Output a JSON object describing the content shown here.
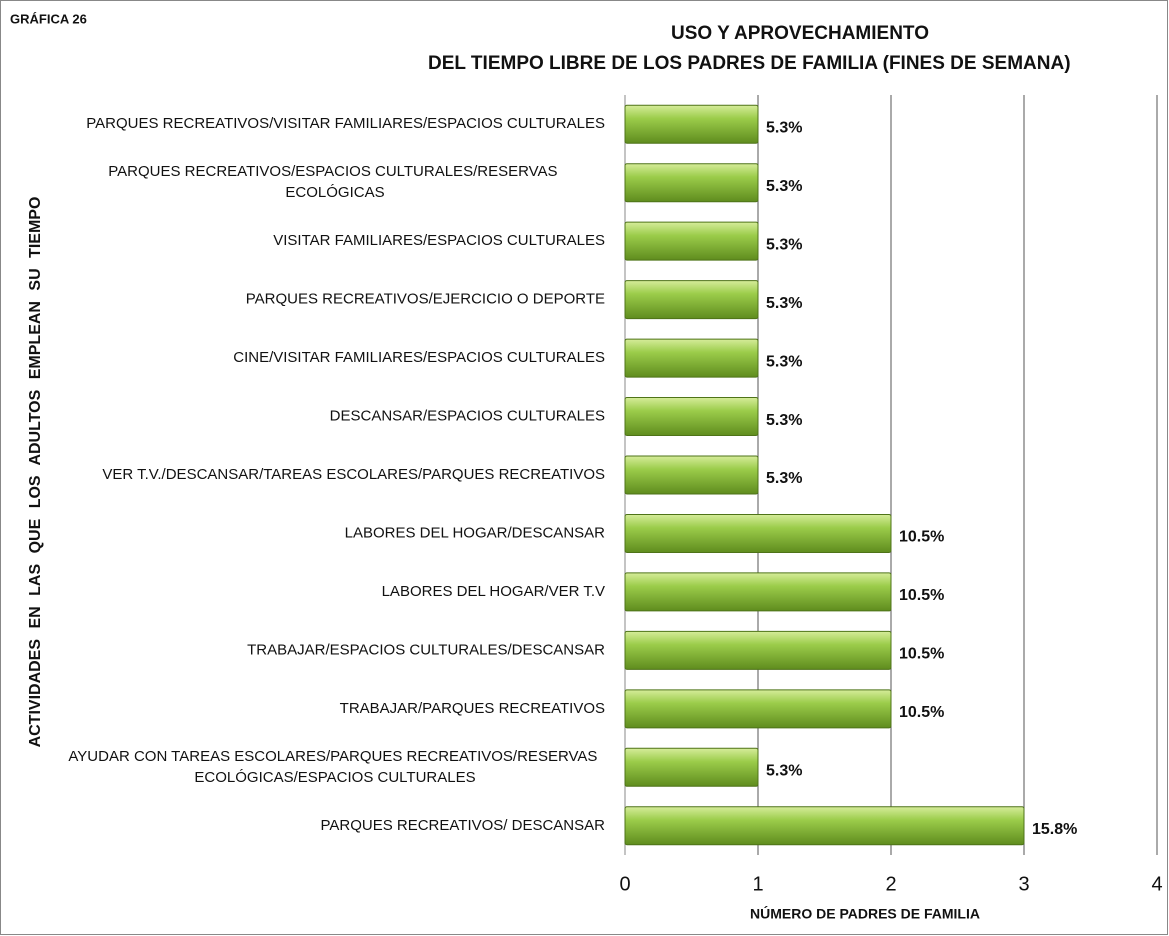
{
  "chart_data": {
    "type": "bar",
    "orientation": "horizontal",
    "figure_label": "GRÁFICA 26",
    "title": [
      "USO Y APROVECHAMIENTO",
      "DEL TIEMPO LIBRE DE LOS PADRES DE FAMILIA (FINES DE SEMANA)"
    ],
    "xlabel": "NÚMERO DE PADRES DE FAMILIA",
    "ylabel": "ACTIVIDADES EN LAS QUE LOS ADULTOS EMPLEAN SU TIEMPO",
    "categories": [
      "PARQUES RECREATIVOS/VISITAR FAMILIARES/ESPACIOS CULTURALES",
      "PARQUES RECREATIVOS/ESPACIOS CULTURALES/RESERVAS ECOLÓGICAS",
      "VISITAR FAMILIARES/ESPACIOS CULTURALES",
      "PARQUES RECREATIVOS/EJERCICIO O DEPORTE",
      "CINE/VISITAR FAMILIARES/ESPACIOS CULTURALES",
      "DESCANSAR/ESPACIOS CULTURALES",
      "VER T.V./DESCANSAR/TAREAS ESCOLARES/PARQUES RECREATIVOS",
      "LABORES DEL HOGAR/DESCANSAR",
      "LABORES DEL HOGAR/VER T.V",
      "TRABAJAR/ESPACIOS CULTURALES/DESCANSAR",
      "TRABAJAR/PARQUES RECREATIVOS",
      "AYUDAR CON TAREAS ESCOLARES/PARQUES RECREATIVOS/RESERVAS ECOLÓGICAS/ESPACIOS CULTURALES",
      "PARQUES RECREATIVOS/ DESCANSAR"
    ],
    "values": [
      1,
      1,
      1,
      1,
      1,
      1,
      1,
      2,
      2,
      2,
      2,
      1,
      3
    ],
    "value_labels": [
      "5.3%",
      "5.3%",
      "5.3%",
      "5.3%",
      "5.3%",
      "5.3%",
      "5.3%",
      "10.5%",
      "10.5%",
      "10.5%",
      "10.5%",
      "5.3%",
      "15.8%"
    ],
    "color": "#92c83e",
    "xlim": [
      0,
      4
    ],
    "xticks": [
      0,
      1,
      2,
      3,
      4
    ],
    "grid": true
  }
}
